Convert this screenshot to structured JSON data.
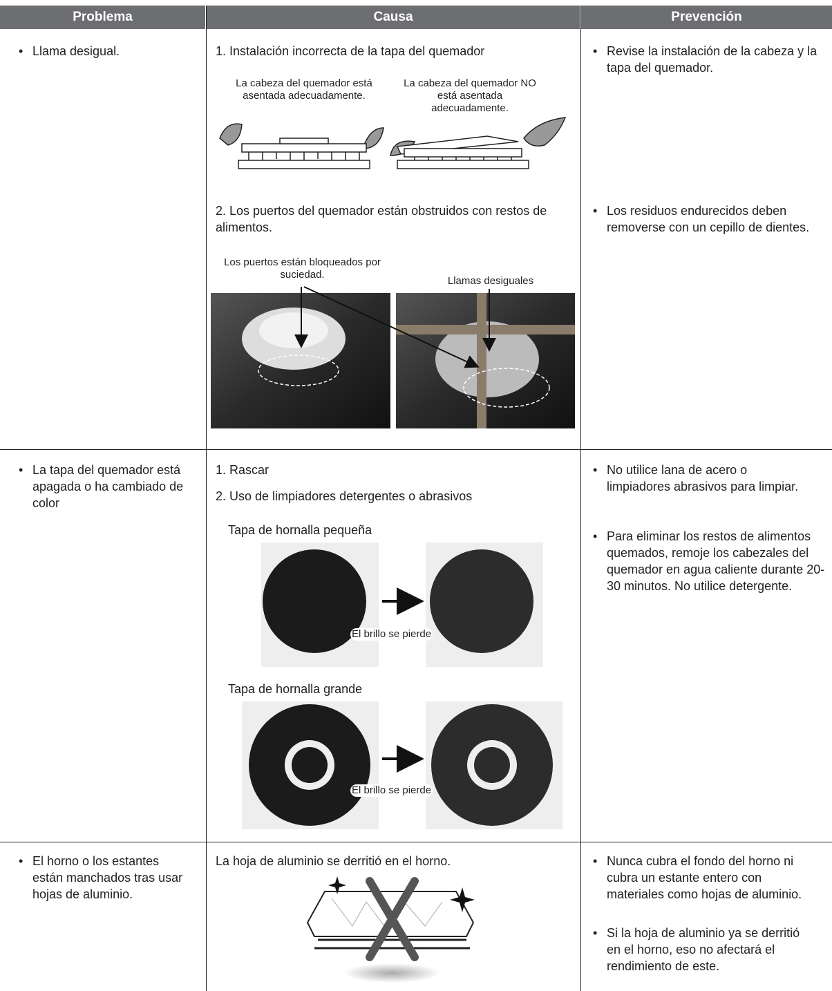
{
  "table": {
    "headers": [
      "Problema",
      "Causa",
      "Prevención"
    ],
    "rows": [
      {
        "problem": "Llama desigual.",
        "causes": [
          {
            "text": "1. Instalación incorrecta de la tapa del quemador",
            "captions": [
              "La cabeza del quemador está asentada adecuadamente.",
              "La cabeza del quemador NO está asentada adecuadamente."
            ]
          },
          {
            "text": "2. Los puertos del quemador están obstruidos con restos de alimentos.",
            "captions": [
              "Los puertos están bloqueados por suciedad.",
              "Llamas desiguales"
            ]
          }
        ],
        "prevention": [
          "Revise la instalación de la cabeza y la tapa del quemador.",
          "Los residuos endurecidos deben removerse con un cepillo de dientes."
        ]
      },
      {
        "problem": "La tapa del quemador está apagada o ha cambiado de color",
        "causes": [
          {
            "text": "1. Rascar"
          },
          {
            "text": "2. Uso de limpiadores detergentes o abrasivos"
          }
        ],
        "figures": [
          {
            "label": "Tapa de hornalla pequeña",
            "caption": "El brillo se pierde"
          },
          {
            "label": "Tapa de hornalla grande",
            "caption": "El brillo se pierde"
          }
        ],
        "prevention": [
          "No utilice lana de acero o limpiadores abrasivos para limpiar.",
          "Para eliminar los restos de alimentos quemados, remoje los cabezales del quemador en agua caliente durante 20-30 minutos. No utilice detergente."
        ]
      },
      {
        "problem": "El horno o los estantes están manchados tras usar hojas de aluminio.",
        "causes": [
          {
            "text": "La hoja de aluminio se derritió en el horno."
          }
        ],
        "prevention": [
          "Nunca cubra el fondo del horno ni cubra un estante entero con materiales como hojas de aluminio.",
          "Si la hoja de aluminio ya se derritió en el horno, eso no afectará el rendimiento de este."
        ]
      }
    ]
  }
}
